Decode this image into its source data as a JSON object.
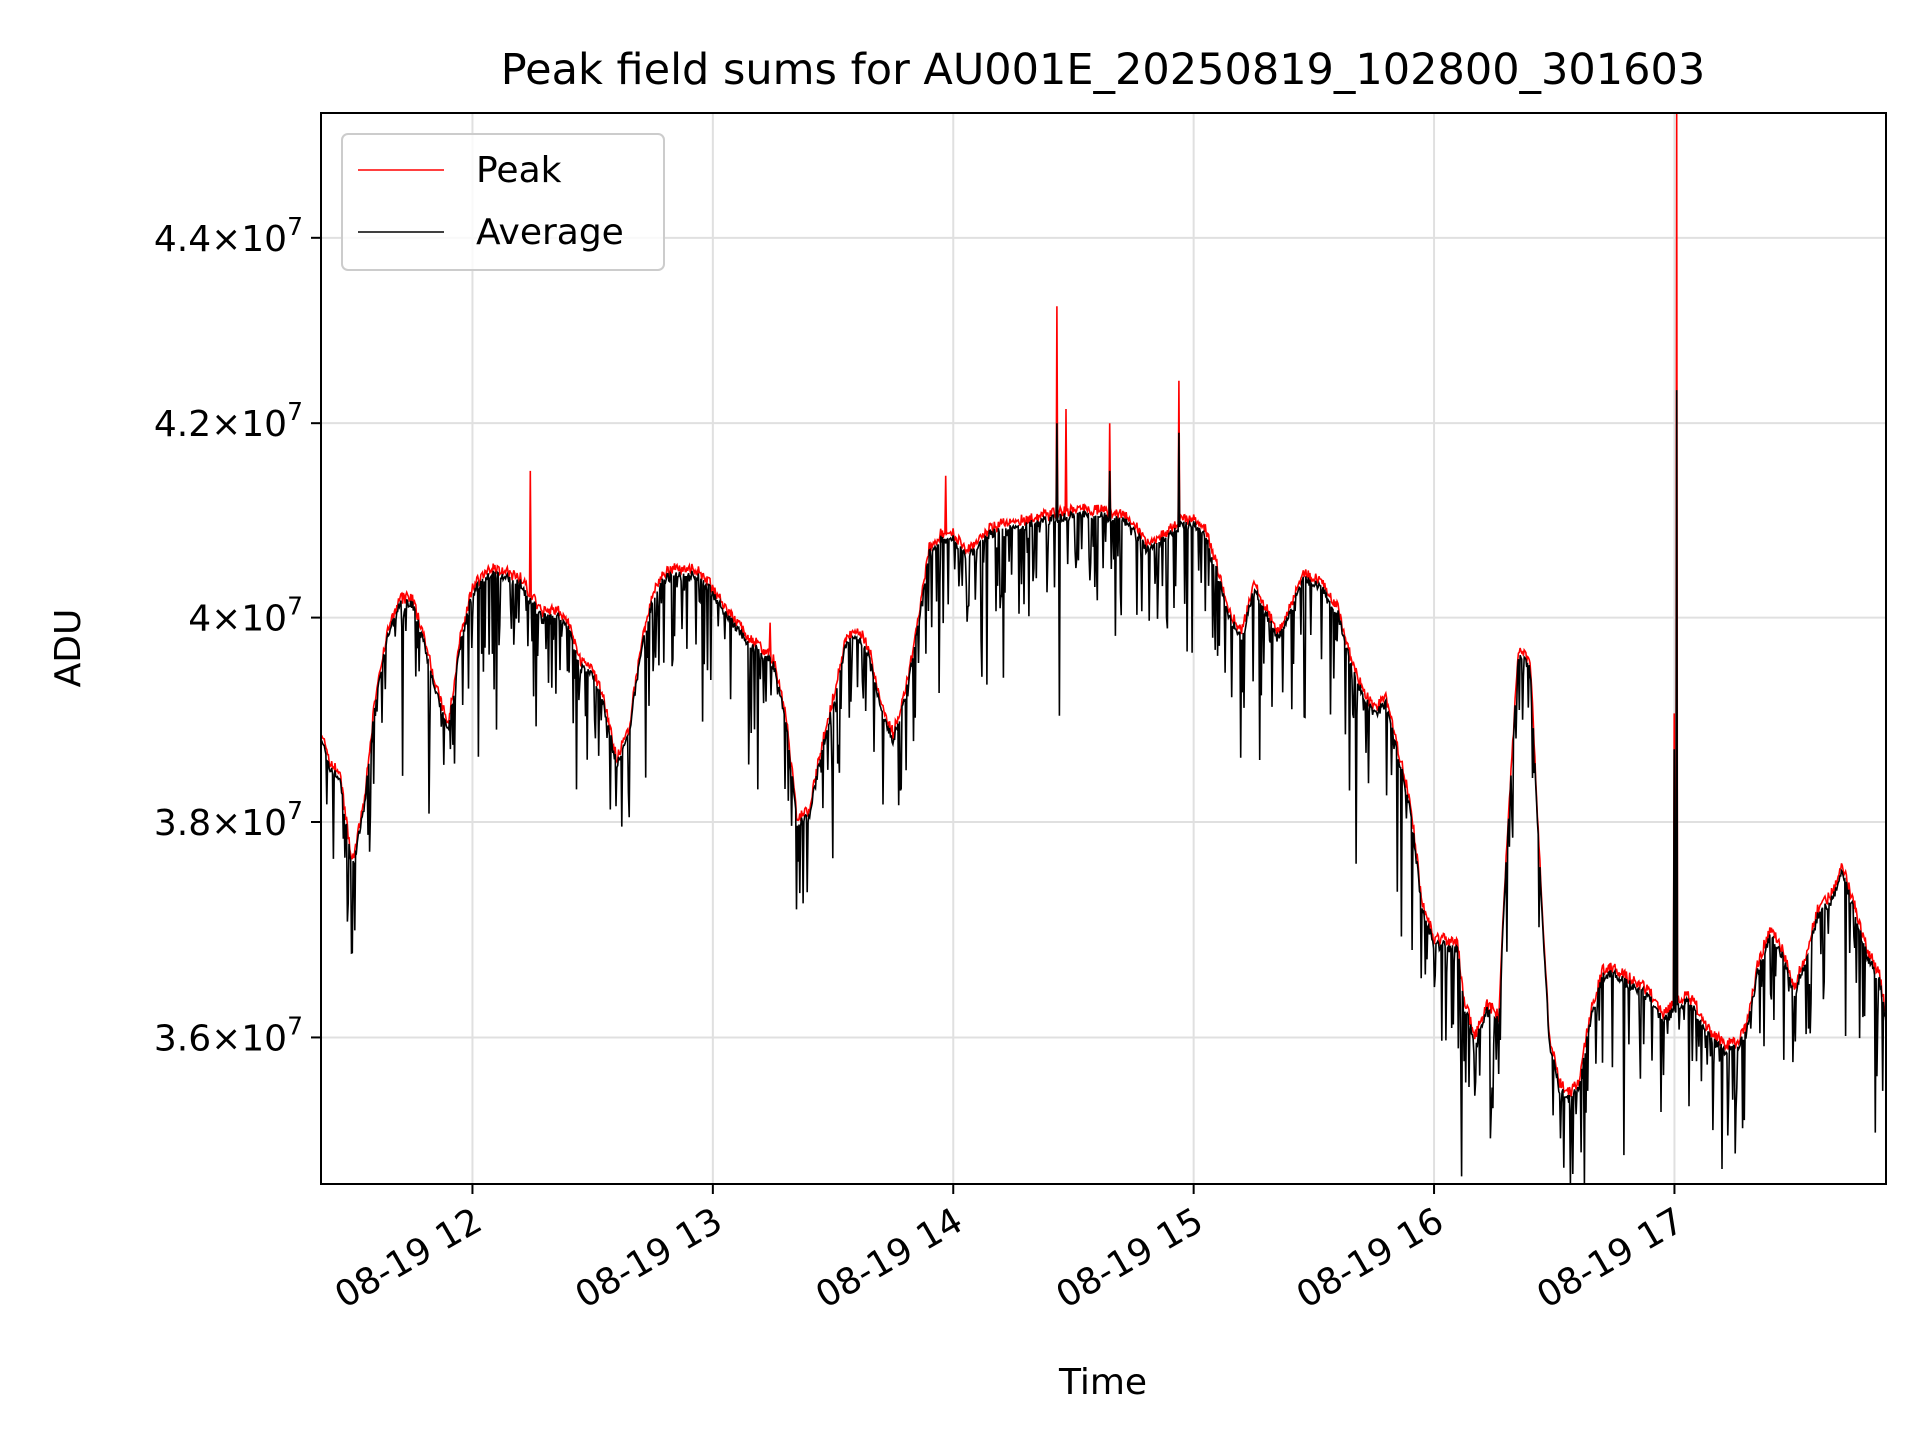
{
  "chart_data": {
    "type": "line",
    "title": "Peak field sums for AU001E_20250819_102800_301603",
    "xlabel": "Time",
    "ylabel": "ADU",
    "x_unit": "hours on 08-19",
    "xlim": [
      11.37,
      17.88
    ],
    "ylim": [
      34700000,
      45400000
    ],
    "y_scale": "log",
    "grid": true,
    "legend_position": "upper-left",
    "x_ticks": [
      {
        "value": 12,
        "label": "08-19 12"
      },
      {
        "value": 13,
        "label": "08-19 13"
      },
      {
        "value": 14,
        "label": "08-19 14"
      },
      {
        "value": 15,
        "label": "08-19 15"
      },
      {
        "value": 16,
        "label": "08-19 16"
      },
      {
        "value": 17,
        "label": "08-19 17"
      }
    ],
    "y_ticks": [
      {
        "value": 36000000,
        "mantissa": "3.6",
        "exponent": "7"
      },
      {
        "value": 38000000,
        "mantissa": "3.8",
        "exponent": "7"
      },
      {
        "value": 40000000,
        "mantissa": "4",
        "exponent": "7"
      },
      {
        "value": 42000000,
        "mantissa": "4.2",
        "exponent": "7"
      },
      {
        "value": 44000000,
        "mantissa": "4.4",
        "exponent": "7"
      }
    ],
    "series": [
      {
        "name": "Peak",
        "color": "#ff0000"
      },
      {
        "name": "Average",
        "color": "#000000"
      }
    ],
    "trend_points": [
      [
        11.37,
        38.9
      ],
      [
        11.4,
        38.6
      ],
      [
        11.45,
        38.45
      ],
      [
        11.5,
        37.6
      ],
      [
        11.55,
        38.2
      ],
      [
        11.6,
        39.3
      ],
      [
        11.64,
        39.8
      ],
      [
        11.7,
        40.2
      ],
      [
        11.75,
        40.2
      ],
      [
        11.8,
        39.8
      ],
      [
        11.85,
        39.3
      ],
      [
        11.9,
        38.95
      ],
      [
        11.95,
        39.8
      ],
      [
        12.0,
        40.3
      ],
      [
        12.05,
        40.45
      ],
      [
        12.1,
        40.5
      ],
      [
        12.15,
        40.45
      ],
      [
        12.2,
        40.4
      ],
      [
        12.25,
        40.2
      ],
      [
        12.3,
        40.05
      ],
      [
        12.35,
        40.1
      ],
      [
        12.4,
        39.95
      ],
      [
        12.45,
        39.55
      ],
      [
        12.5,
        39.5
      ],
      [
        12.55,
        39.15
      ],
      [
        12.6,
        38.6
      ],
      [
        12.65,
        38.9
      ],
      [
        12.7,
        39.7
      ],
      [
        12.75,
        40.25
      ],
      [
        12.8,
        40.45
      ],
      [
        12.85,
        40.5
      ],
      [
        12.9,
        40.5
      ],
      [
        12.95,
        40.45
      ],
      [
        13.0,
        40.3
      ],
      [
        13.05,
        40.1
      ],
      [
        13.1,
        39.95
      ],
      [
        13.15,
        39.8
      ],
      [
        13.2,
        39.7
      ],
      [
        13.25,
        39.6
      ],
      [
        13.3,
        39.1
      ],
      [
        13.35,
        38.05
      ],
      [
        13.4,
        38.1
      ],
      [
        13.45,
        38.7
      ],
      [
        13.5,
        39.2
      ],
      [
        13.55,
        39.75
      ],
      [
        13.6,
        39.9
      ],
      [
        13.65,
        39.7
      ],
      [
        13.7,
        39.15
      ],
      [
        13.75,
        38.85
      ],
      [
        13.8,
        39.25
      ],
      [
        13.85,
        39.9
      ],
      [
        13.9,
        40.7
      ],
      [
        13.95,
        40.85
      ],
      [
        14.0,
        40.85
      ],
      [
        14.05,
        40.7
      ],
      [
        14.1,
        40.75
      ],
      [
        14.15,
        40.9
      ],
      [
        14.2,
        40.95
      ],
      [
        14.3,
        41.0
      ],
      [
        14.4,
        41.05
      ],
      [
        14.5,
        41.1
      ],
      [
        14.6,
        41.1
      ],
      [
        14.7,
        41.05
      ],
      [
        14.75,
        41.0
      ],
      [
        14.8,
        40.75
      ],
      [
        14.85,
        40.8
      ],
      [
        14.9,
        40.9
      ],
      [
        14.95,
        41.0
      ],
      [
        15.0,
        41.0
      ],
      [
        15.05,
        40.9
      ],
      [
        15.1,
        40.5
      ],
      [
        15.15,
        40.05
      ],
      [
        15.2,
        39.85
      ],
      [
        15.25,
        40.35
      ],
      [
        15.3,
        40.1
      ],
      [
        15.35,
        39.85
      ],
      [
        15.4,
        40.1
      ],
      [
        15.45,
        40.45
      ],
      [
        15.5,
        40.4
      ],
      [
        15.55,
        40.3
      ],
      [
        15.6,
        40.1
      ],
      [
        15.65,
        39.65
      ],
      [
        15.7,
        39.3
      ],
      [
        15.75,
        39.1
      ],
      [
        15.8,
        39.2
      ],
      [
        15.85,
        38.7
      ],
      [
        15.9,
        38.2
      ],
      [
        15.95,
        37.25
      ],
      [
        16.0,
        36.9
      ],
      [
        16.05,
        36.9
      ],
      [
        16.1,
        36.85
      ],
      [
        16.12,
        36.4
      ],
      [
        16.17,
        36.0
      ],
      [
        16.22,
        36.3
      ],
      [
        16.27,
        36.2
      ],
      [
        16.3,
        37.7
      ],
      [
        16.35,
        39.65
      ],
      [
        16.4,
        39.6
      ],
      [
        16.44,
        37.6
      ],
      [
        16.48,
        36.0
      ],
      [
        16.52,
        35.6
      ],
      [
        16.56,
        35.5
      ],
      [
        16.6,
        35.6
      ],
      [
        16.65,
        36.2
      ],
      [
        16.7,
        36.6
      ],
      [
        16.75,
        36.65
      ],
      [
        16.8,
        36.55
      ],
      [
        16.85,
        36.5
      ],
      [
        16.9,
        36.4
      ],
      [
        16.95,
        36.2
      ],
      [
        17.0,
        36.3
      ],
      [
        17.05,
        36.4
      ],
      [
        17.1,
        36.25
      ],
      [
        17.15,
        36.05
      ],
      [
        17.2,
        35.95
      ],
      [
        17.25,
        35.95
      ],
      [
        17.3,
        36.1
      ],
      [
        17.35,
        36.7
      ],
      [
        17.4,
        37.0
      ],
      [
        17.45,
        36.8
      ],
      [
        17.5,
        36.45
      ],
      [
        17.55,
        36.8
      ],
      [
        17.6,
        37.2
      ],
      [
        17.65,
        37.3
      ],
      [
        17.7,
        37.6
      ],
      [
        17.75,
        37.2
      ],
      [
        17.8,
        36.8
      ],
      [
        17.85,
        36.6
      ],
      [
        17.88,
        36.2
      ]
    ],
    "peak_spikes": [
      [
        12.24,
        41.5
      ],
      [
        13.24,
        39.95
      ],
      [
        13.97,
        41.45
      ],
      [
        14.43,
        43.25
      ],
      [
        14.47,
        42.15
      ],
      [
        14.65,
        42.0
      ],
      [
        14.94,
        42.45
      ],
      [
        17.0,
        39.05
      ],
      [
        17.01,
        45.4
      ]
    ],
    "average_spikes": [
      [
        14.43,
        42.0
      ],
      [
        14.65,
        41.5
      ],
      [
        14.94,
        41.9
      ],
      [
        17.01,
        42.35
      ],
      [
        17.0,
        38.7
      ]
    ],
    "units_scale": 1000000
  }
}
